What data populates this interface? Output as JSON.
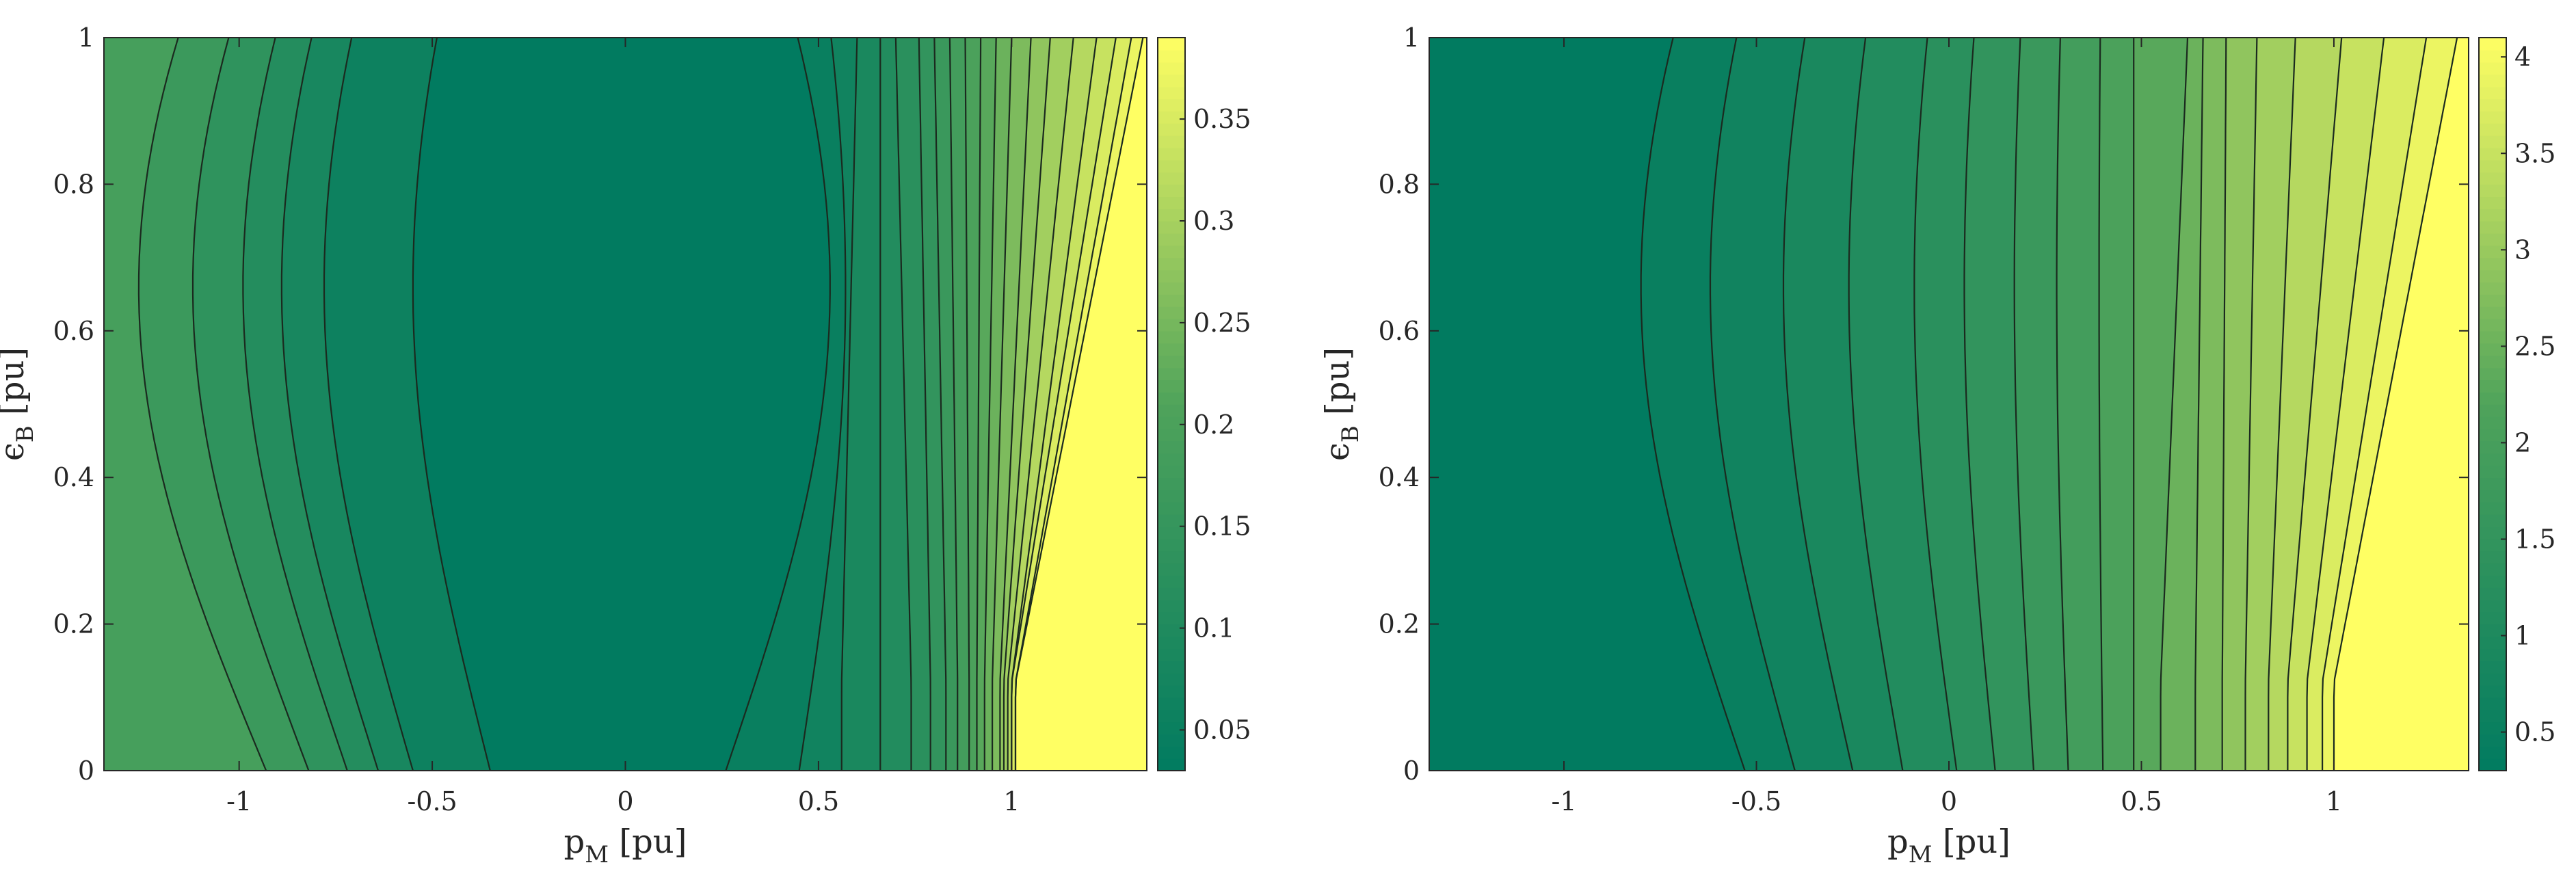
{
  "colors": {
    "low": "#017B60",
    "mid": "#4FA35B",
    "high": "#FFFF63",
    "contour_line": "#1b2a1f"
  },
  "chart_data": [
    {
      "type": "contour",
      "title": "",
      "xlabel": {
        "main": "p",
        "sub": "M",
        "unit": " [pu]"
      },
      "ylabel": {
        "main": "ϵ",
        "sub": "B",
        "unit": " [pu]"
      },
      "xlim": [
        -1.35,
        1.35
      ],
      "ylim": [
        0,
        1
      ],
      "xticks": [
        {
          "value": -1,
          "label": "-1"
        },
        {
          "value": -0.5,
          "label": "-0.5"
        },
        {
          "value": 0,
          "label": "0"
        },
        {
          "value": 0.5,
          "label": "0.5"
        },
        {
          "value": 1,
          "label": "1"
        }
      ],
      "yticks": [
        {
          "value": 0,
          "label": "0"
        },
        {
          "value": 0.2,
          "label": "0.2"
        },
        {
          "value": 0.4,
          "label": "0.4"
        },
        {
          "value": 0.6,
          "label": "0.6"
        },
        {
          "value": 0.8,
          "label": "0.8"
        },
        {
          "value": 1,
          "label": "1"
        }
      ],
      "colorbar": {
        "range": [
          0.03,
          0.39
        ],
        "ticks": [
          {
            "value": 0.05,
            "label": "0.05"
          },
          {
            "value": 0.1,
            "label": "0.1"
          },
          {
            "value": 0.15,
            "label": "0.15"
          },
          {
            "value": 0.2,
            "label": "0.2"
          },
          {
            "value": 0.25,
            "label": "0.25"
          },
          {
            "value": 0.3,
            "label": "0.3"
          },
          {
            "value": 0.35,
            "label": "0.35"
          }
        ]
      },
      "field": "V-shaped: minimum near p_M≈0, rising toward both sides; steepest increase for p_M between 0.5 and 1",
      "left_fill_value": 0.19,
      "contours": [
        {
          "base": -0.93,
          "bulge": 0.33
        },
        {
          "base": -0.82,
          "bulge": 0.3
        },
        {
          "base": -0.72,
          "bulge": 0.27
        },
        {
          "base": -0.64,
          "bulge": 0.25
        },
        {
          "base": -0.55,
          "bulge": 0.23
        },
        {
          "base": -0.35,
          "bulge": 0.2
        },
        {
          "base": 0.26,
          "bulge": -0.27
        },
        {
          "base": 0.45,
          "bulge": -0.12
        },
        {
          "base": 0.56,
          "kink": 0.6,
          "bulge": -0.05
        },
        {
          "base": 0.66,
          "kink": 0.66
        },
        {
          "base": 0.74,
          "kink": 0.7
        },
        {
          "base": 0.79,
          "kink": 0.76
        },
        {
          "base": 0.83,
          "kink": 0.8
        },
        {
          "base": 0.86,
          "kink": 0.84
        },
        {
          "base": 0.89,
          "kink": 0.88
        },
        {
          "base": 0.91,
          "kink": 0.92
        },
        {
          "base": 0.93,
          "kink": 0.96
        },
        {
          "base": 0.95,
          "kink": 1.0
        },
        {
          "base": 0.97,
          "kink": 1.05
        },
        {
          "base": 0.98,
          "kink": 1.1
        },
        {
          "base": 0.99,
          "kink": 1.16
        },
        {
          "base": 1.0,
          "kink": 1.22
        },
        {
          "base": 1.0,
          "kink": 1.27
        },
        {
          "base": 1.01,
          "kink": 1.31
        },
        {
          "base": 1.01,
          "kink": 1.34
        }
      ]
    },
    {
      "type": "contour",
      "title": "",
      "xlabel": {
        "main": "p",
        "sub": "M",
        "unit": " [pu]"
      },
      "ylabel": {
        "main": "ϵ",
        "sub": "B",
        "unit": " [pu]"
      },
      "xlim": [
        -1.35,
        1.35
      ],
      "ylim": [
        0,
        1
      ],
      "xticks": [
        {
          "value": -1,
          "label": "-1"
        },
        {
          "value": -0.5,
          "label": "-0.5"
        },
        {
          "value": 0,
          "label": "0"
        },
        {
          "value": 0.5,
          "label": "0.5"
        },
        {
          "value": 1,
          "label": "1"
        }
      ],
      "yticks": [
        {
          "value": 0,
          "label": "0"
        },
        {
          "value": 0.2,
          "label": "0.2"
        },
        {
          "value": 0.4,
          "label": "0.4"
        },
        {
          "value": 0.6,
          "label": "0.6"
        },
        {
          "value": 0.8,
          "label": "0.8"
        },
        {
          "value": 1,
          "label": "1"
        }
      ],
      "colorbar": {
        "range": [
          0.3,
          4.1
        ],
        "ticks": [
          {
            "value": 0.5,
            "label": "0.5"
          },
          {
            "value": 1,
            "label": "1"
          },
          {
            "value": 1.5,
            "label": "1.5"
          },
          {
            "value": 2,
            "label": "2"
          },
          {
            "value": 2.5,
            "label": "2.5"
          },
          {
            "value": 3,
            "label": "3"
          },
          {
            "value": 3.5,
            "label": "3.5"
          },
          {
            "value": 4,
            "label": "4"
          }
        ]
      },
      "field": "Monotonically increasing with p_M: minimum at left, maximum at right",
      "contours": [
        {
          "base": -0.53,
          "bulge": 0.27
        },
        {
          "base": -0.4,
          "bulge": 0.22
        },
        {
          "base": -0.25,
          "bulge": 0.18
        },
        {
          "base": -0.12,
          "bulge": 0.14
        },
        {
          "base": 0.02,
          "bulge": 0.11
        },
        {
          "base": 0.12,
          "bulge": 0.08
        },
        {
          "base": 0.22,
          "bulge": 0.05
        },
        {
          "base": 0.31,
          "bulge": 0.03
        },
        {
          "base": 0.4,
          "bulge": 0.01
        },
        {
          "base": 0.48,
          "bulge": 0.0
        },
        {
          "base": 0.55,
          "kink": 0.62
        },
        {
          "base": 0.64,
          "kink": 0.66
        },
        {
          "base": 0.71,
          "kink": 0.72
        },
        {
          "base": 0.77,
          "kink": 0.8
        },
        {
          "base": 0.83,
          "kink": 0.9
        },
        {
          "base": 0.88,
          "kink": 1.02
        },
        {
          "base": 0.93,
          "kink": 1.13
        },
        {
          "base": 0.97,
          "kink": 1.24
        },
        {
          "base": 1.0,
          "kink": 1.32
        }
      ]
    }
  ]
}
